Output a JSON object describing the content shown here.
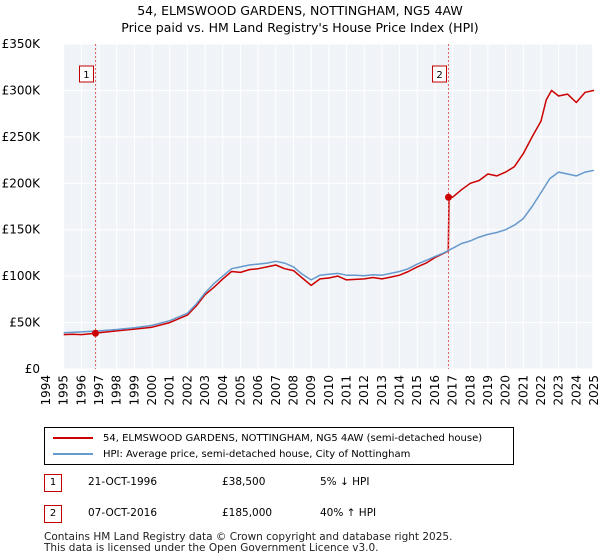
{
  "chart_data": {
    "type": "line",
    "title": "54, ELMSWOOD GARDENS, NOTTINGHAM, NG5 4AW",
    "subtitle": "Price paid vs. HM Land Registry's House Price Index (HPI)",
    "xlabel": "",
    "ylabel": "",
    "xlim": [
      1994,
      2025
    ],
    "ylim": [
      0,
      350000
    ],
    "y_ticks": [
      {
        "value": 0,
        "label": "£0"
      },
      {
        "value": 50000,
        "label": "£50K"
      },
      {
        "value": 100000,
        "label": "£100K"
      },
      {
        "value": 150000,
        "label": "£150K"
      },
      {
        "value": 200000,
        "label": "£200K"
      },
      {
        "value": 250000,
        "label": "£250K"
      },
      {
        "value": 300000,
        "label": "£300K"
      },
      {
        "value": 350000,
        "label": "£350K"
      }
    ],
    "x_ticks": [
      "1994",
      "1995",
      "1996",
      "1997",
      "1998",
      "1999",
      "2000",
      "2001",
      "2002",
      "2003",
      "2004",
      "2005",
      "2006",
      "2007",
      "2008",
      "2009",
      "2010",
      "2011",
      "2012",
      "2013",
      "2014",
      "2015",
      "2016",
      "2017",
      "2018",
      "2019",
      "2020",
      "2021",
      "2022",
      "2023",
      "2024",
      "2025"
    ],
    "grid": true,
    "shaded_periods": [
      {
        "start": 1994,
        "end": 1995
      },
      {
        "start": 2024.9,
        "end": 2025
      }
    ],
    "series": [
      {
        "name": "54, ELMSWOOD GARDENS, NOTTINGHAM, NG5 4AW (semi-detached house)",
        "color": "#cc0000",
        "x": [
          1995,
          1995.5,
          1996,
          1996.8,
          1997,
          1998,
          1999,
          2000,
          2001,
          2002,
          2002.5,
          2003,
          2003.5,
          2004,
          2004.5,
          2005,
          2005.5,
          2006,
          2006.5,
          2007,
          2007.5,
          2008,
          2008.5,
          2009,
          2009.5,
          2010,
          2010.5,
          2011,
          2011.5,
          2012,
          2012.5,
          2013,
          2013.5,
          2014,
          2014.5,
          2015,
          2015.5,
          2016,
          2016.76,
          2016.8,
          2017,
          2017.5,
          2018,
          2018.5,
          2019,
          2019.5,
          2020,
          2020.5,
          2021,
          2021.5,
          2022,
          2022.3,
          2022.6,
          2023,
          2023.5,
          2024,
          2024.5,
          2025
        ],
        "values": [
          37000,
          37500,
          37000,
          38500,
          39000,
          41000,
          43000,
          45000,
          50000,
          58000,
          68000,
          80000,
          88000,
          97000,
          105000,
          104000,
          107000,
          108000,
          110000,
          112000,
          108000,
          106000,
          98000,
          90000,
          97000,
          98000,
          100000,
          96000,
          96500,
          97000,
          98500,
          97000,
          99000,
          101000,
          105000,
          110000,
          114000,
          120000,
          127000,
          185000,
          185000,
          193000,
          200000,
          203000,
          210000,
          208000,
          212000,
          218000,
          232000,
          250000,
          267000,
          290000,
          300000,
          294000,
          296000,
          287000,
          298000,
          300000
        ]
      },
      {
        "name": "HPI: Average price, semi-detached house, City of Nottingham",
        "color": "#6699cc",
        "x": [
          1995,
          1996,
          1997,
          1998,
          1999,
          2000,
          2001,
          2002,
          2002.5,
          2003,
          2003.5,
          2004,
          2004.5,
          2005,
          2005.5,
          2006,
          2006.5,
          2007,
          2007.5,
          2008,
          2008.5,
          2009,
          2009.5,
          2010,
          2010.5,
          2011,
          2011.5,
          2012,
          2012.5,
          2013,
          2013.5,
          2014,
          2014.5,
          2015,
          2015.5,
          2016,
          2016.5,
          2017,
          2017.5,
          2018,
          2018.5,
          2019,
          2019.5,
          2020,
          2020.5,
          2021,
          2021.5,
          2022,
          2022.5,
          2023,
          2023.5,
          2024,
          2024.5,
          2025
        ],
        "values": [
          39000,
          40000,
          41000,
          42500,
          44500,
          47000,
          52000,
          60000,
          70000,
          82000,
          92000,
          100000,
          108000,
          110000,
          112000,
          113000,
          114000,
          116000,
          114000,
          110000,
          102000,
          96000,
          101000,
          102000,
          103000,
          101000,
          101000,
          100500,
          101500,
          101000,
          103000,
          105000,
          108000,
          113000,
          117000,
          121000,
          125000,
          130000,
          135000,
          138000,
          142000,
          145000,
          147000,
          150000,
          155000,
          162000,
          175000,
          190000,
          205000,
          212000,
          210000,
          208000,
          212000,
          214000
        ]
      }
    ],
    "annotations": [
      {
        "label": "1",
        "x": 1996.8,
        "y": 38500
      },
      {
        "label": "2",
        "x": 2016.77,
        "y": 185000
      }
    ]
  },
  "legend": {
    "items": [
      {
        "label": "54, ELMSWOOD GARDENS, NOTTINGHAM, NG5 4AW (semi-detached house)",
        "color": "#cc0000"
      },
      {
        "label": "HPI: Average price, semi-detached house, City of Nottingham",
        "color": "#6699cc"
      }
    ]
  },
  "transactions": [
    {
      "num": "1",
      "date": "21-OCT-1996",
      "price": "£38,500",
      "hpi": "5% ↓ HPI"
    },
    {
      "num": "2",
      "date": "07-OCT-2016",
      "price": "£185,000",
      "hpi": "40% ↑ HPI"
    }
  ],
  "footer": {
    "line1": "Contains HM Land Registry data © Crown copyright and database right 2025.",
    "line2": "This data is licensed under the Open Government Licence v3.0."
  }
}
